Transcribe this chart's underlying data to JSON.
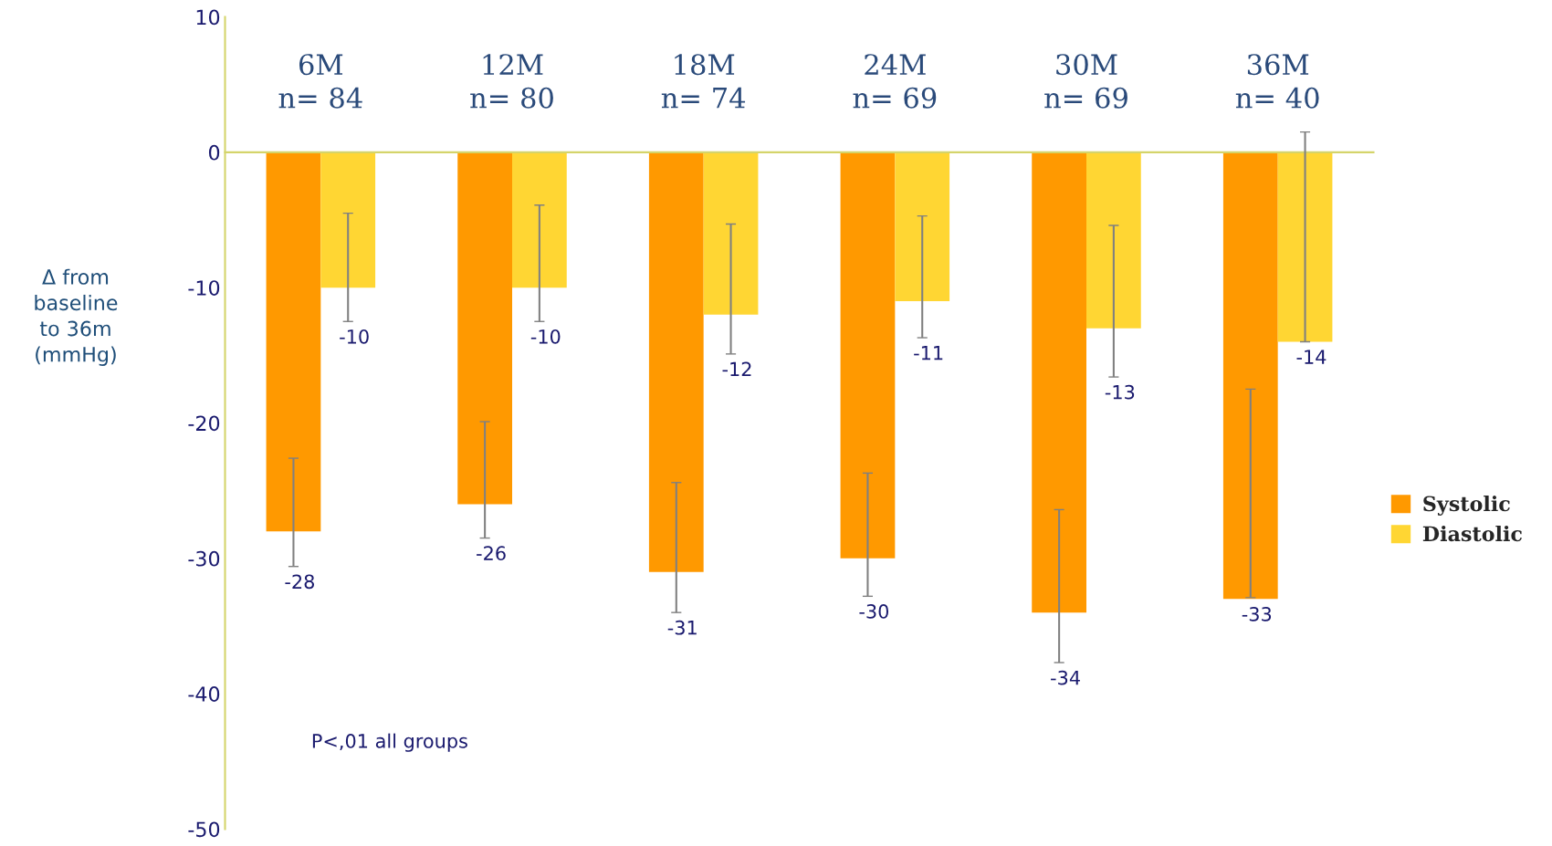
{
  "chart_data": {
    "type": "bar",
    "ylabel": "Δ from\nbaseline\nto 36m\n(mmHg)",
    "categories": [
      "6M\nn= 84",
      "12M\nn= 80",
      "18M\nn= 74",
      "24M\nn= 69",
      "30M\nn= 69",
      "36M\nn= 40"
    ],
    "series": [
      {
        "name": "Systolic",
        "color": "#ff9900",
        "values": [
          -28,
          -26,
          -31,
          -30,
          -34,
          -33
        ],
        "errors": [
          [
            -30.6,
            -22.6
          ],
          [
            -28.5,
            -19.9
          ],
          [
            -34.0,
            -24.4
          ],
          [
            -32.8,
            -23.7
          ],
          [
            -37.7,
            -26.4
          ],
          [
            -32.9,
            -17.5
          ]
        ]
      },
      {
        "name": "Diastolic",
        "color": "#ffd633",
        "values": [
          -10,
          -10,
          -12,
          -11,
          -13,
          -14
        ],
        "errors": [
          [
            -12.5,
            -4.5
          ],
          [
            -12.5,
            -3.9
          ],
          [
            -14.9,
            -5.3
          ],
          [
            -13.7,
            -4.7
          ],
          [
            -16.6,
            -5.4
          ],
          [
            -14.0,
            1.5
          ]
        ]
      }
    ],
    "ylim": [
      -50,
      10
    ],
    "yticks": [
      10,
      0,
      -10,
      -20,
      -30,
      -40,
      -50
    ],
    "data_labels": true,
    "legend": "right",
    "grid": false,
    "annotations": [
      {
        "text": "P<,01 all groups"
      }
    ]
  }
}
